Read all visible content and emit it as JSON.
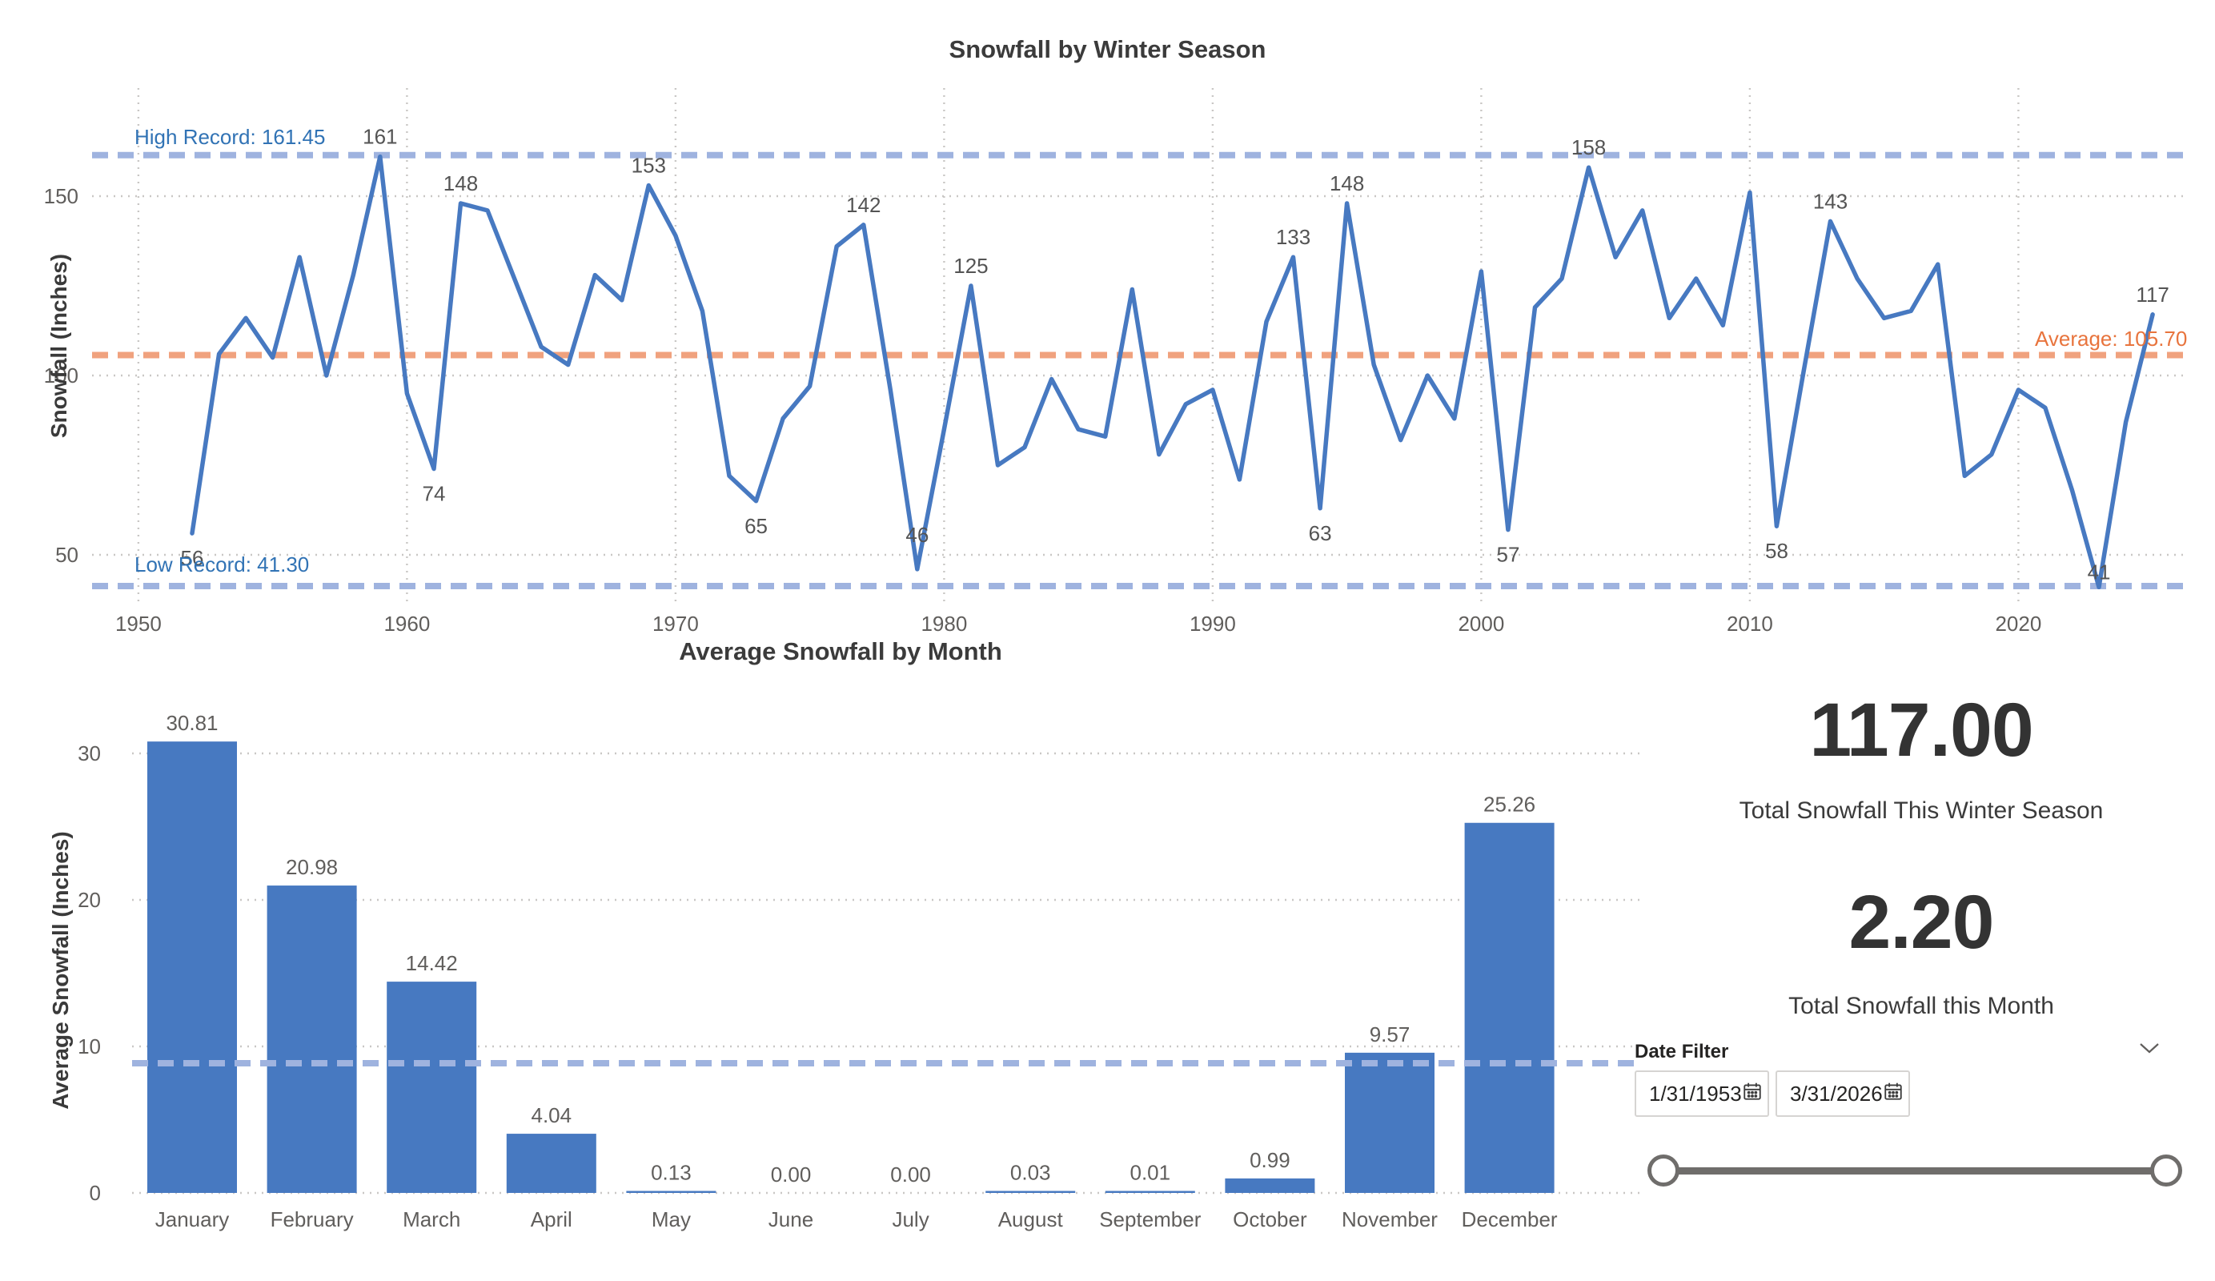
{
  "colors": {
    "series_blue": "#4779C1",
    "record_line": "#9FB3DF",
    "record_text": "#3173B5",
    "average_line": "#F0A27E",
    "average_text": "#E8743D",
    "gridline": "#C9C7C5",
    "tick_text": "#605E5C",
    "point_label_text": "#545454",
    "title_text": "#3b3b3b",
    "kpi_text": "#333333",
    "slider": "#6F6D6B"
  },
  "chart_data": [
    {
      "type": "line",
      "title": "Snowfall by Winter Season",
      "xlabel": "",
      "ylabel": "Snowfall (Inches)",
      "start_year": 1952,
      "x": [
        1952,
        1953,
        1954,
        1955,
        1956,
        1957,
        1958,
        1959,
        1960,
        1961,
        1962,
        1963,
        1964,
        1965,
        1966,
        1967,
        1968,
        1969,
        1970,
        1971,
        1972,
        1973,
        1974,
        1975,
        1976,
        1977,
        1978,
        1979,
        1980,
        1981,
        1982,
        1983,
        1984,
        1985,
        1986,
        1987,
        1988,
        1989,
        1990,
        1991,
        1992,
        1993,
        1994,
        1995,
        1996,
        1997,
        1998,
        1999,
        2000,
        2001,
        2002,
        2003,
        2004,
        2005,
        2006,
        2007,
        2008,
        2009,
        2010,
        2011,
        2012,
        2013,
        2014,
        2015,
        2016,
        2017,
        2018,
        2019,
        2020,
        2021,
        2022,
        2023,
        2024,
        2025
      ],
      "values": [
        56,
        106,
        116,
        105,
        133,
        100,
        128,
        161,
        95,
        74,
        148,
        146,
        127,
        108,
        103,
        128,
        121,
        153,
        139,
        118,
        72,
        65,
        88,
        97,
        136,
        142,
        96,
        46,
        85,
        125,
        75,
        80,
        99,
        85,
        83,
        124,
        78,
        92,
        96,
        71,
        115,
        133,
        63,
        148,
        103,
        82,
        100,
        88,
        129,
        57,
        119,
        127,
        158,
        133,
        146,
        116,
        127,
        114,
        151,
        58,
        101,
        143,
        127,
        116,
        118,
        131,
        72,
        78,
        96,
        91,
        68,
        41,
        87,
        117
      ],
      "x_ticks": [
        1950,
        1960,
        1970,
        1980,
        1990,
        2000,
        2010,
        2020
      ],
      "y_ticks": [
        50,
        100,
        150
      ],
      "ylim": [
        36,
        172
      ],
      "grid": "dotted",
      "legend": "none",
      "reference_lines": [
        {
          "name": "high_record",
          "value": 161.45,
          "label": "High Record: 161.45"
        },
        {
          "name": "low_record",
          "value": 41.3,
          "label": "Low Record: 41.30"
        },
        {
          "name": "average",
          "value": 105.7,
          "label": "Average: 105.70"
        }
      ],
      "point_labels": [
        {
          "year": 1952,
          "value": 56,
          "pos": "below"
        },
        {
          "year": 1959,
          "value": 161,
          "pos": "above"
        },
        {
          "year": 1961,
          "value": 74,
          "pos": "below"
        },
        {
          "year": 1962,
          "value": 148,
          "pos": "above"
        },
        {
          "year": 1969,
          "value": 153,
          "pos": "above"
        },
        {
          "year": 1973,
          "value": 65,
          "pos": "below"
        },
        {
          "year": 1977,
          "value": 142,
          "pos": "above"
        },
        {
          "year": 1979,
          "value": 46,
          "pos": "above",
          "dy": -34
        },
        {
          "year": 1981,
          "value": 125,
          "pos": "above"
        },
        {
          "year": 1993,
          "value": 133,
          "pos": "above"
        },
        {
          "year": 1994,
          "value": 63,
          "pos": "below"
        },
        {
          "year": 1995,
          "value": 148,
          "pos": "above"
        },
        {
          "year": 2001,
          "value": 57,
          "pos": "below"
        },
        {
          "year": 2004,
          "value": 158,
          "pos": "above"
        },
        {
          "year": 2011,
          "value": 58,
          "pos": "below"
        },
        {
          "year": 2013,
          "value": 143,
          "pos": "above"
        },
        {
          "year": 2023,
          "value": 41,
          "pos": "above",
          "dy": -10
        },
        {
          "year": 2025,
          "value": 117,
          "pos": "above"
        }
      ]
    },
    {
      "type": "bar",
      "title": "Average Snowfall by Month",
      "xlabel": "",
      "ylabel": "Average Snowfall (Inches)",
      "categories": [
        "January",
        "February",
        "March",
        "April",
        "May",
        "June",
        "July",
        "August",
        "September",
        "October",
        "November",
        "December"
      ],
      "values": [
        30.81,
        20.98,
        14.42,
        4.04,
        0.13,
        0.0,
        0.0,
        0.03,
        0.01,
        0.99,
        9.57,
        25.26
      ],
      "y_ticks": [
        0,
        10,
        20,
        30
      ],
      "ylim": [
        0,
        33
      ],
      "average_line": 8.85,
      "grid": "dotted",
      "legend": "none"
    }
  ],
  "kpis": {
    "season_value": "117.00",
    "season_label": "Total Snowfall This Winter Season",
    "month_value": "2.20",
    "month_label": "Total Snowfall this Month"
  },
  "date_filter": {
    "label": "Date Filter",
    "start": "1/31/1953",
    "end": "3/31/2026"
  }
}
